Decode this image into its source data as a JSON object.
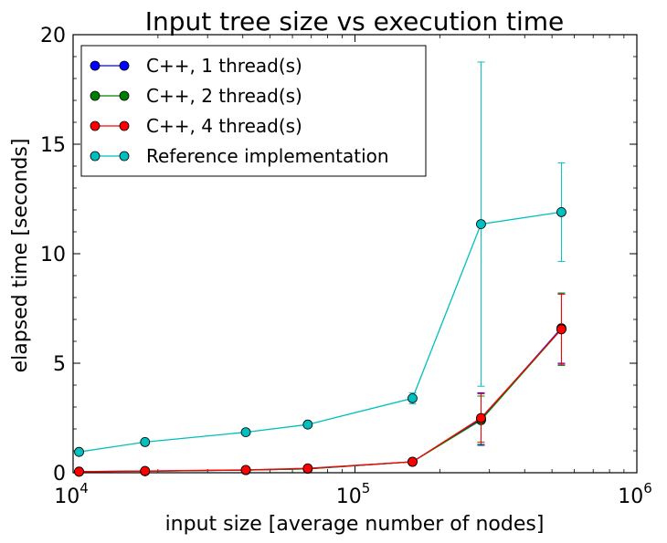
{
  "chart_data": {
    "type": "line",
    "title": "Input tree size vs execution time",
    "xlabel": "input size [average number of nodes]",
    "ylabel": "elapsed time [seconds]",
    "xscale": "log",
    "xlim": [
      10000,
      1000000
    ],
    "ylim": [
      0,
      20
    ],
    "yticks": [
      0,
      5,
      10,
      15,
      20
    ],
    "xtick_labels": [
      {
        "base": "10",
        "exp": "4",
        "value": 10000
      },
      {
        "base": "10",
        "exp": "5",
        "value": 100000
      },
      {
        "base": "10",
        "exp": "6",
        "value": 1000000
      }
    ],
    "legend_position": "upper-left",
    "grid": false,
    "x": [
      10500,
      18000,
      41000,
      68000,
      160000,
      280000,
      540000
    ],
    "series": [
      {
        "name": "C++, 1 thread(s)",
        "color": "#0000ff",
        "values": [
          0.05,
          0.07,
          0.12,
          0.18,
          0.5,
          2.45,
          6.6
        ],
        "errors": [
          0,
          0,
          0,
          0,
          0.05,
          1.2,
          1.6
        ]
      },
      {
        "name": "C++, 2 thread(s)",
        "color": "#008000",
        "values": [
          0.05,
          0.07,
          0.12,
          0.18,
          0.5,
          2.4,
          6.55
        ],
        "errors": [
          0,
          0,
          0,
          0,
          0.05,
          1.1,
          1.65
        ]
      },
      {
        "name": "C++, 4 thread(s)",
        "color": "#ff0000",
        "values": [
          0.05,
          0.08,
          0.13,
          0.2,
          0.5,
          2.5,
          6.55
        ],
        "errors": [
          0,
          0,
          0,
          0,
          0.05,
          1.1,
          1.6
        ]
      },
      {
        "name": "Reference implementation",
        "color": "#00bfbf",
        "values": [
          0.95,
          1.4,
          1.85,
          2.2,
          3.4,
          11.35,
          11.9
        ],
        "errors": [
          0.05,
          0.05,
          0.05,
          0.05,
          0.25,
          7.4,
          2.25
        ]
      }
    ]
  }
}
